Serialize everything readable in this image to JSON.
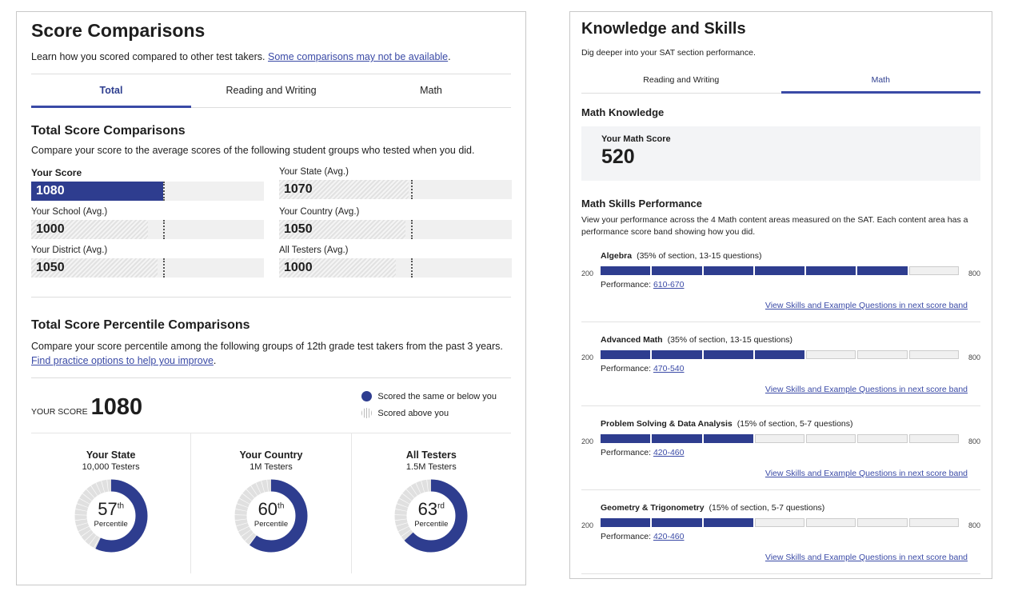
{
  "left": {
    "title": "Score Comparisons",
    "intro": "Learn how you scored compared to other test takers.",
    "intro_link": "Some comparisons may not be available",
    "intro_end": ".",
    "tabs": [
      {
        "label": "Total",
        "active": true
      },
      {
        "label": "Reading and Writing"
      },
      {
        "label": "Math"
      }
    ],
    "comparisons": {
      "title": "Total Score Comparisons",
      "desc": "Compare your score to the average scores of the following student groups who tested when you did.",
      "scale": [
        400,
        1600
      ],
      "your_score": 1080,
      "bars": [
        {
          "label": "Your Score",
          "value": "1080",
          "num": 1080,
          "you": true
        },
        {
          "label": "Your State (Avg.)",
          "value": "1070",
          "num": 1070
        },
        {
          "label": "Your School (Avg.)",
          "value": "1000",
          "num": 1000
        },
        {
          "label": "Your Country (Avg.)",
          "value": "1050",
          "num": 1050
        },
        {
          "label": "Your District (Avg.)",
          "value": "1050",
          "num": 1050
        },
        {
          "label": "All Testers (Avg.)",
          "value": "1000",
          "num": 1000
        }
      ]
    },
    "percentiles": {
      "title": "Total Score Percentile Comparisons",
      "desc": "Compare your score percentile among the following groups of 12th grade test takers from the past 3 years.",
      "link": "Find practice options to help you improve",
      "link_end": ".",
      "your_score_label": "YOUR SCORE",
      "your_score": "1080",
      "legend": [
        "Scored the same or below you",
        "Scored above you"
      ],
      "groups": [
        {
          "name": "Your State",
          "testers": "10,000 Testers",
          "percentile": 57,
          "num": "57",
          "suffix": "th",
          "label": "Percentile"
        },
        {
          "name": "Your Country",
          "testers": "1M Testers",
          "percentile": 60,
          "num": "60",
          "suffix": "th",
          "label": "Percentile"
        },
        {
          "name": "All Testers",
          "testers": "1.5M Testers",
          "percentile": 63,
          "num": "63",
          "suffix": "rd",
          "label": "Percentile"
        }
      ]
    }
  },
  "right": {
    "title": "Knowledge and Skills",
    "intro": "Dig deeper into your SAT section performance.",
    "tabs": [
      {
        "label": "Reading and Writing"
      },
      {
        "label": "Math",
        "active": true
      }
    ],
    "knowledge_title": "Math Knowledge",
    "score_label": "Your Math Score",
    "score": "520",
    "skills_title": "Math Skills Performance",
    "skills_desc": "View your performance across the 4 Math content areas measured on the SAT. Each content area has a performance score band showing how you did.",
    "min": "200",
    "max": "800",
    "perf_label": "Performance:",
    "skills": [
      {
        "name": "Algebra",
        "detail": "(35% of section, 13-15 questions)",
        "band": "610-670",
        "filled": 6,
        "total": 7,
        "link": "View Skills and Example Questions in next score band"
      },
      {
        "name": "Advanced Math",
        "detail": "(35% of section, 13-15 questions)",
        "band": "470-540",
        "filled": 4,
        "total": 7,
        "link": "View Skills and Example Questions in next score band"
      },
      {
        "name": "Problem Solving & Data Analysis",
        "detail": "(15% of section, 5-7 questions)",
        "band": "420-460",
        "filled": 3,
        "total": 7,
        "link": "View Skills and Example Questions in next score band"
      },
      {
        "name": "Geometry & Trigonometry",
        "detail": "(15% of section, 5-7 questions)",
        "band": "420-460",
        "filled": 3,
        "total": 7,
        "link": "View Skills and Example Questions in next score band"
      }
    ]
  },
  "colors": {
    "accent": "#2e3d8f",
    "link": "#3a4aa6",
    "track": "#f0f0f0"
  }
}
